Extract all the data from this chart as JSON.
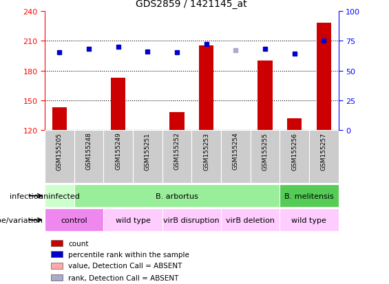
{
  "title": "GDS2859 / 1421145_at",
  "samples": [
    "GSM155205",
    "GSM155248",
    "GSM155249",
    "GSM155251",
    "GSM155252",
    "GSM155253",
    "GSM155254",
    "GSM155255",
    "GSM155256",
    "GSM155257"
  ],
  "count_values": [
    143,
    120,
    173,
    120,
    138,
    205,
    120,
    190,
    132,
    228
  ],
  "count_absent": [
    false,
    false,
    false,
    false,
    false,
    false,
    true,
    false,
    false,
    false
  ],
  "rank_values": [
    65,
    68,
    70,
    66,
    65,
    72,
    67,
    68,
    64,
    75
  ],
  "rank_absent": [
    false,
    false,
    false,
    false,
    false,
    false,
    true,
    false,
    false,
    false
  ],
  "ylim_left": [
    120,
    240
  ],
  "ylim_right": [
    0,
    100
  ],
  "yticks_left": [
    120,
    150,
    180,
    210,
    240
  ],
  "yticks_right": [
    0,
    25,
    50,
    75,
    100
  ],
  "infection_groups": [
    {
      "label": "uninfected",
      "start": 0,
      "end": 1,
      "color": "#ccffcc"
    },
    {
      "label": "B. arbortus",
      "start": 1,
      "end": 8,
      "color": "#99ee99"
    },
    {
      "label": "B. melitensis",
      "start": 8,
      "end": 10,
      "color": "#55cc55"
    }
  ],
  "genotype_groups": [
    {
      "label": "control",
      "start": 0,
      "end": 2,
      "color": "#ee88ee"
    },
    {
      "label": "wild type",
      "start": 2,
      "end": 4,
      "color": "#ffccff"
    },
    {
      "label": "virB disruption",
      "start": 4,
      "end": 6,
      "color": "#ffccff"
    },
    {
      "label": "virB deletion",
      "start": 6,
      "end": 8,
      "color": "#ffccff"
    },
    {
      "label": "wild type",
      "start": 8,
      "end": 10,
      "color": "#ffccff"
    }
  ],
  "bar_color_normal": "#cc0000",
  "bar_color_absent": "#ffaaaa",
  "dot_color_normal": "#0000cc",
  "dot_color_absent": "#aaaacc",
  "bar_width": 0.5,
  "legend_items": [
    {
      "label": "count",
      "color": "#cc0000"
    },
    {
      "label": "percentile rank within the sample",
      "color": "#0000cc"
    },
    {
      "label": "value, Detection Call = ABSENT",
      "color": "#ffaaaa"
    },
    {
      "label": "rank, Detection Call = ABSENT",
      "color": "#aaaacc"
    }
  ]
}
